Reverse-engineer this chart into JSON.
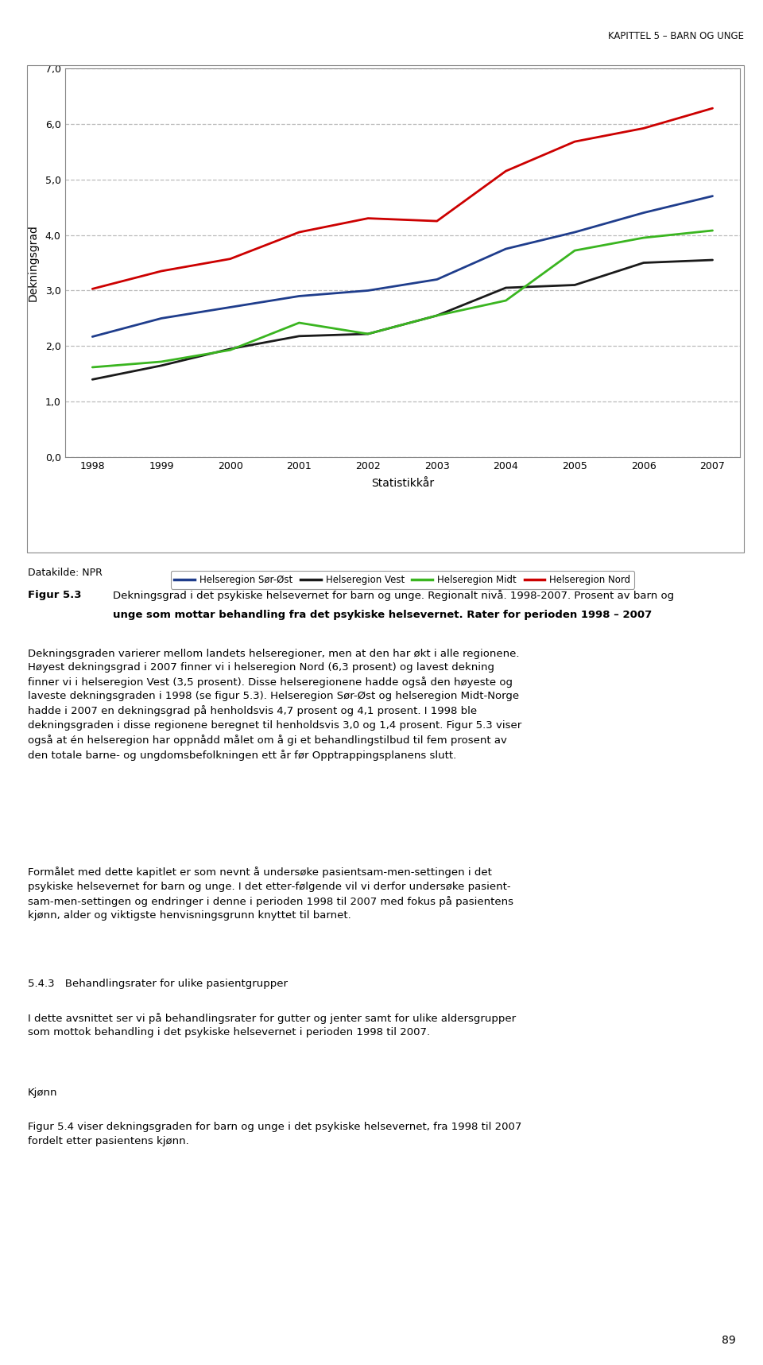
{
  "years": [
    1998,
    1999,
    2000,
    2001,
    2002,
    2003,
    2004,
    2005,
    2006,
    2007
  ],
  "series": {
    "Helseregion Sør-Øst": {
      "color": "#1f3d8c",
      "values": [
        2.17,
        2.5,
        2.7,
        2.9,
        3.0,
        3.2,
        3.75,
        4.05,
        4.4,
        4.7
      ]
    },
    "Helseregion Vest": {
      "color": "#1a1a1a",
      "values": [
        1.4,
        1.65,
        1.95,
        2.18,
        2.22,
        2.55,
        3.05,
        3.1,
        3.5,
        3.55
      ]
    },
    "Helseregion Midt": {
      "color": "#3ab520",
      "values": [
        1.62,
        1.72,
        1.93,
        2.42,
        2.22,
        2.55,
        2.82,
        3.72,
        3.95,
        4.08
      ]
    },
    "Helseregion Nord": {
      "color": "#cc0000",
      "values": [
        3.03,
        3.35,
        3.57,
        4.05,
        4.3,
        4.25,
        5.15,
        5.68,
        5.92,
        6.28
      ]
    }
  },
  "xlabel": "Statistikkår",
  "ylabel": "Dekningsgrad",
  "ylim": [
    0.0,
    7.0
  ],
  "yticks": [
    0.0,
    1.0,
    2.0,
    3.0,
    4.0,
    5.0,
    6.0,
    7.0
  ],
  "ytick_labels": [
    "0,0",
    "1,0",
    "2,0",
    "3,0",
    "4,0",
    "5,0",
    "6,0",
    "7,0"
  ],
  "page_header": "Kapittel 5 – Barn og unge",
  "datasource": "Datakilde: NPR",
  "figure_label": "Figur 5.3",
  "figure_caption_line1": "Dekningsgrad i det psykiske helsevernet for barn og unge. Regionalt nivå. 1998-2007. Prosent av barn og",
  "figure_caption_line2": "unge som mottar behandling fra det psykiske helsevernet. Rater for perioden 1998 – 2007",
  "page_number": "89",
  "background_color": "#ffffff",
  "grid_color": "#bbbbbb",
  "legend_series_order": [
    "Helseregion Sør-Øst",
    "Helseregion Vest",
    "Helseregion Midt",
    "Helseregion Nord"
  ]
}
